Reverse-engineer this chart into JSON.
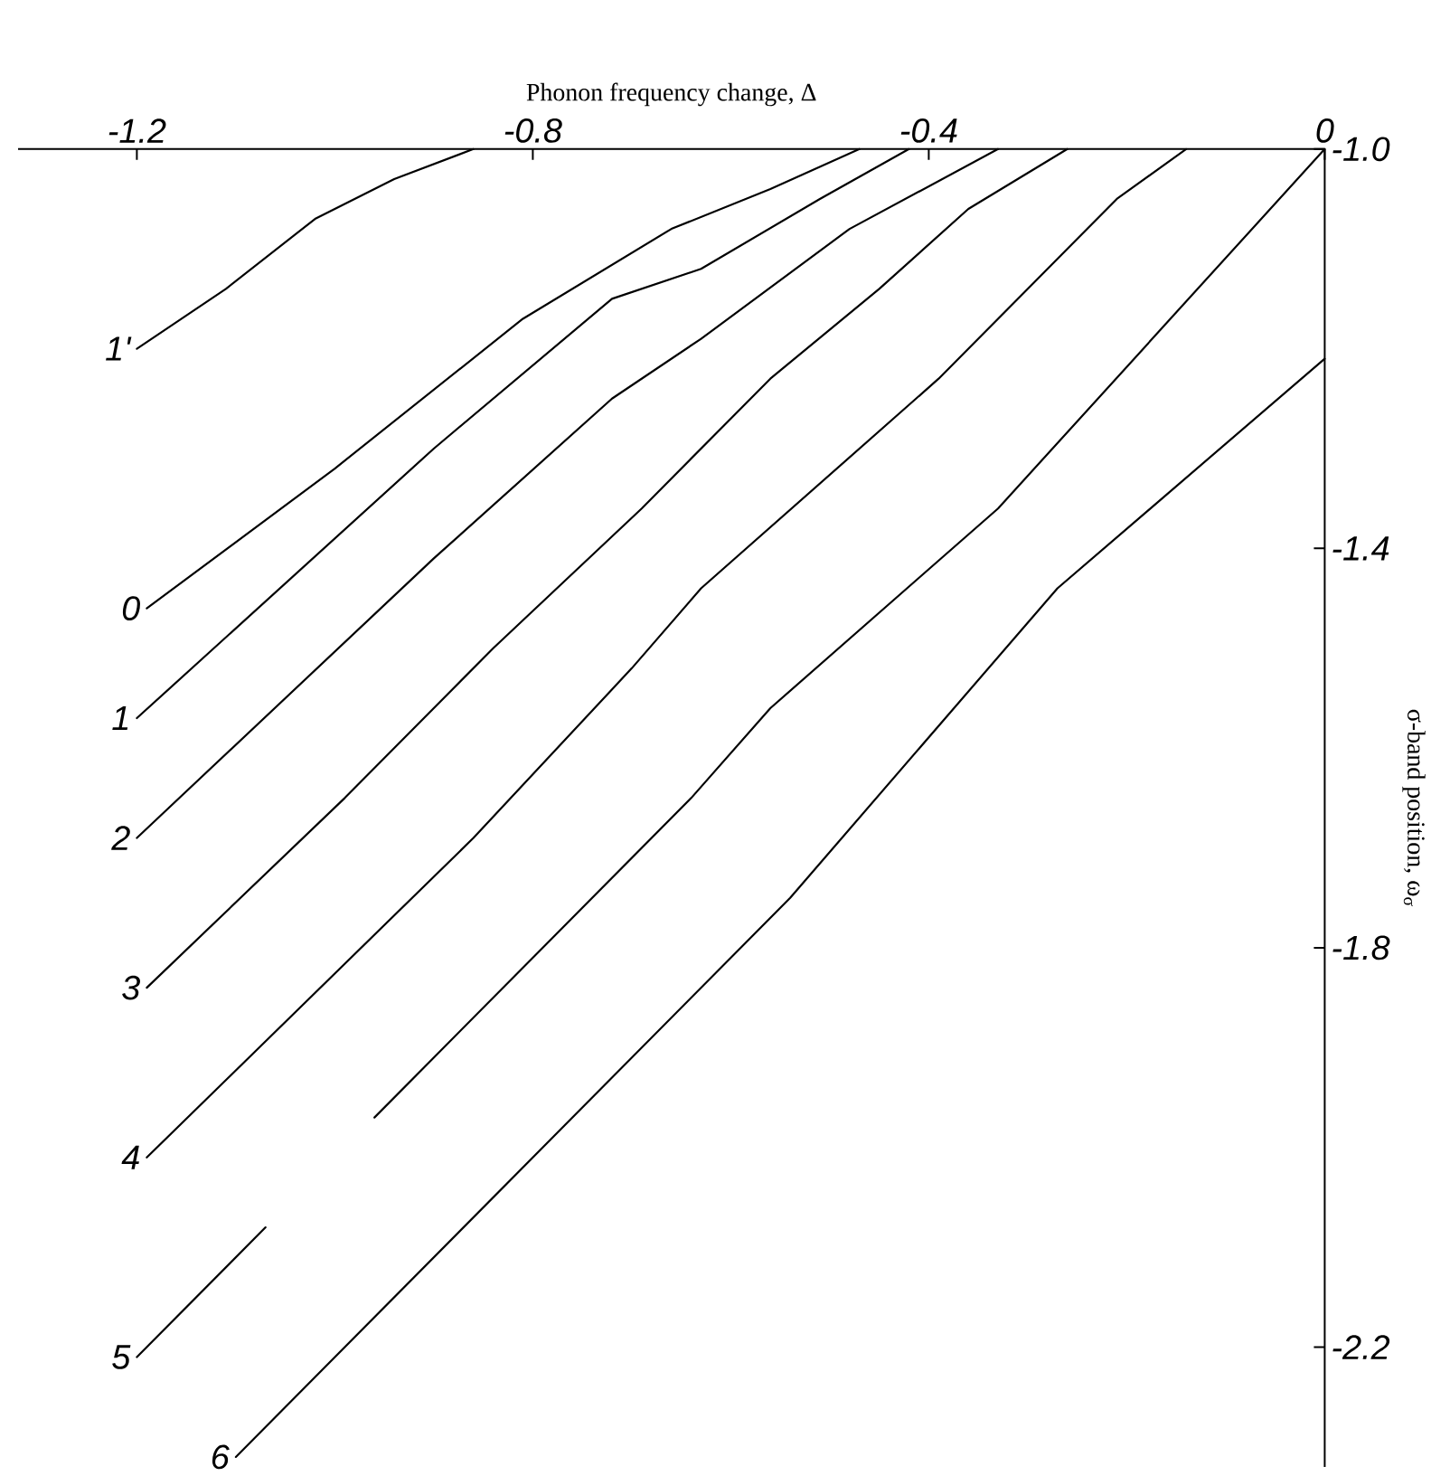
{
  "chart_data": {
    "type": "line",
    "xlabel": "Phonon frequency change, Δ",
    "ylabel": "σ-band position, ω$_{σ}$",
    "xlim": [
      -1.32,
      0
    ],
    "ylim": [
      -2.32,
      -1.0
    ],
    "xticks": [
      -1.2,
      -0.8,
      -0.4,
      0
    ],
    "yticks": [
      {
        "value": -1.0,
        "label": "-1.0"
      },
      -1.4,
      -1.8,
      -2.2
    ],
    "series": [
      {
        "name": "1'",
        "color": "#000000",
        "x": [
          -1.2,
          -1.11,
          -1.02,
          -0.94,
          -0.86
        ],
        "values": [
          -1.2,
          -1.14,
          -1.07,
          -1.03,
          -1.0
        ]
      },
      {
        "name": "0",
        "color": "#000000",
        "x": [
          -1.19,
          -1.0,
          -0.81,
          -0.66,
          -0.56,
          -0.47
        ],
        "values": [
          -1.46,
          -1.32,
          -1.17,
          -1.08,
          -1.04,
          -1.0
        ]
      },
      {
        "name": "1",
        "color": "#000000",
        "x": [
          -1.2,
          -0.9,
          -0.72,
          -0.63,
          -0.51,
          -0.42
        ],
        "values": [
          -1.57,
          -1.3,
          -1.15,
          -1.12,
          -1.05,
          -1.0
        ]
      },
      {
        "name": "2",
        "color": "#000000",
        "x": [
          -1.2,
          -0.9,
          -0.72,
          -0.63,
          -0.48,
          -0.33
        ],
        "values": [
          -1.69,
          -1.41,
          -1.25,
          -1.19,
          -1.08,
          -1.0
        ]
      },
      {
        "name": "3",
        "color": "#000000",
        "x": [
          -1.19,
          -0.99,
          -0.84,
          -0.69,
          -0.56,
          -0.45,
          -0.36,
          -0.26
        ],
        "values": [
          -1.84,
          -1.65,
          -1.5,
          -1.36,
          -1.23,
          -1.14,
          -1.06,
          -1.0
        ]
      },
      {
        "name": "4",
        "color": "#000000",
        "x": [
          -1.19,
          -0.86,
          -0.7,
          -0.63,
          -0.39,
          -0.21,
          -0.14
        ],
        "values": [
          -2.01,
          -1.69,
          -1.52,
          -1.44,
          -1.23,
          -1.05,
          -1.0
        ]
      },
      {
        "name": "5",
        "color": "#000000",
        "x": [
          -1.2,
          -1.07,
          -1.02,
          -0.96,
          -0.64,
          -0.56,
          -0.33,
          0
        ],
        "values": [
          -2.21,
          -2.08,
          null,
          -1.97,
          -1.65,
          -1.56,
          -1.36,
          -1.0
        ]
      },
      {
        "name": "6",
        "color": "#000000",
        "x": [
          -1.1,
          -0.54,
          -0.27,
          0
        ],
        "values": [
          -2.31,
          -1.75,
          -1.44,
          -1.21
        ]
      }
    ]
  }
}
